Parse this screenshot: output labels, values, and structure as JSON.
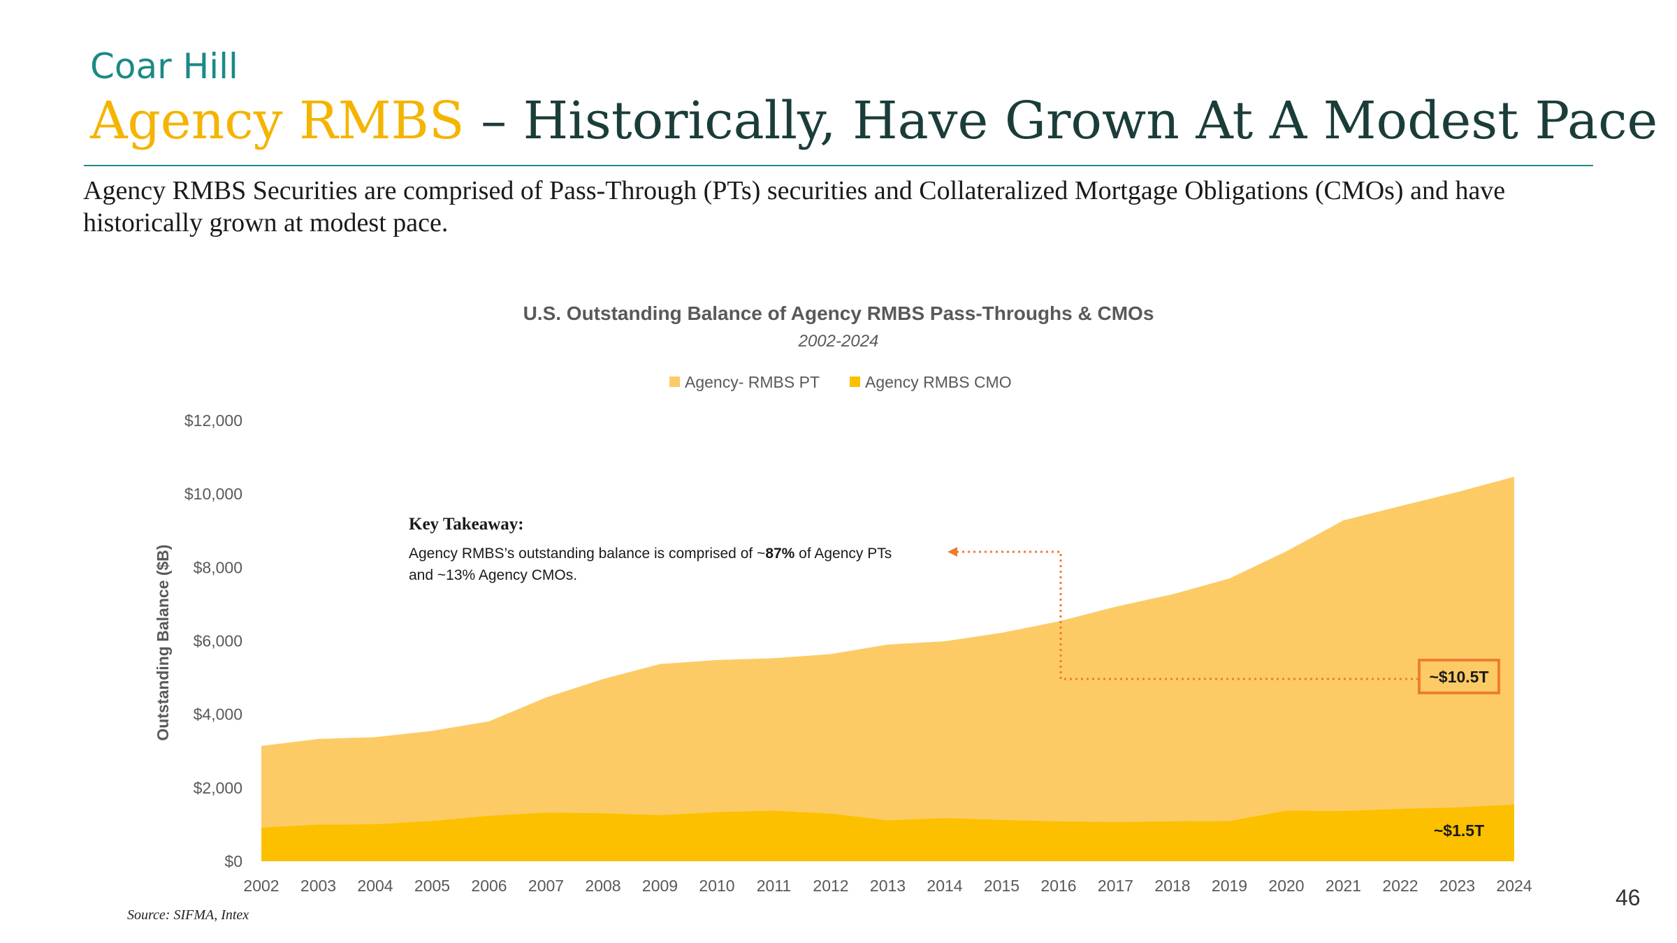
{
  "brand": "Coar Hill",
  "headline": {
    "accent": "Agency RMBS",
    "rest": " – Historically, Have Grown At A Modest Pace"
  },
  "intro": "Agency RMBS Securities are comprised of Pass-Through (PTs) securities and Collateralized Mortgage Obligations (CMOs) and have historically grown at modest pace.",
  "page_number": "46",
  "source": "Source: SIFMA, Intex",
  "colors": {
    "pt": "#fdcb66",
    "cmo": "#fcc000",
    "accent_orange": "#ed7d31",
    "axis_text": "#595959",
    "title_text": "#595959"
  },
  "chart_data": {
    "type": "area",
    "stacked": true,
    "title": "U.S. Outstanding Balance of Agency RMBS Pass-Throughs & CMOs",
    "subtitle": "2002-2024",
    "xlabel": "",
    "ylabel": "Outstanding Balance ($B)",
    "ylim": [
      0,
      12000
    ],
    "yticks": [
      0,
      2000,
      4000,
      6000,
      8000,
      10000,
      12000
    ],
    "ytick_labels": [
      "$0",
      "$2,000",
      "$4,000",
      "$6,000",
      "$8,000",
      "$10,000",
      "$12,000"
    ],
    "grid": false,
    "legend_position": "top-center",
    "categories": [
      "2002",
      "2003",
      "2004",
      "2005",
      "2006",
      "2007",
      "2008",
      "2009",
      "2010",
      "2011",
      "2012",
      "2013",
      "2014",
      "2015",
      "2016",
      "2017",
      "2018",
      "2019",
      "2020",
      "2021",
      "2022",
      "2023",
      "2024"
    ],
    "series": [
      {
        "name": "Agency RMBS CMO",
        "values": [
          920,
          1000,
          1010,
          1100,
          1240,
          1330,
          1310,
          1260,
          1340,
          1380,
          1300,
          1120,
          1180,
          1130,
          1090,
          1070,
          1090,
          1100,
          1380,
          1370,
          1430,
          1470,
          1550
        ]
      },
      {
        "name": "Agency- RMBS PT",
        "values": [
          2220,
          2330,
          2370,
          2450,
          2570,
          3130,
          3650,
          4110,
          4140,
          4150,
          4340,
          4780,
          4810,
          5090,
          5440,
          5860,
          6180,
          6600,
          7060,
          7910,
          8240,
          8580,
          8920
        ]
      }
    ],
    "legend": [
      "Agency- RMBS PT",
      "Agency RMBS CMO"
    ],
    "annotations": {
      "takeaway_title": "Key Takeaway:",
      "takeaway_text_1": "Agency RMBS’s outstanding balance is comprised of ~",
      "takeaway_bold": "87%",
      "takeaway_text_2": " of Agency PTs",
      "takeaway_text_3": "and ~13% Agency CMOs.",
      "total_label": "~$10.5T",
      "cmo_label": "~$1.5T"
    }
  }
}
